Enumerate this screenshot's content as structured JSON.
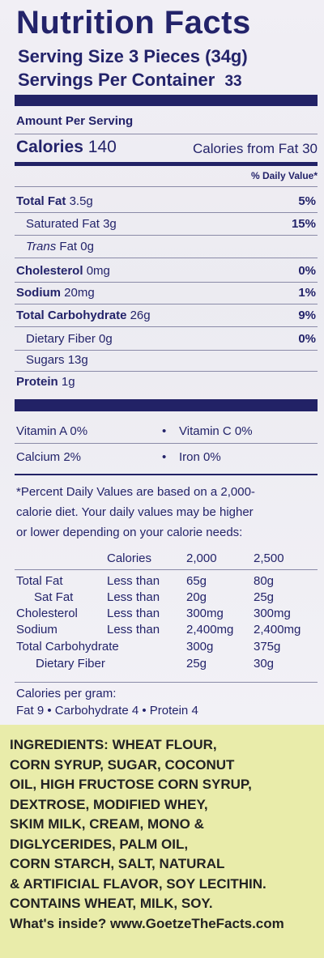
{
  "title": "Nutrition Facts",
  "serving_size": "Serving Size 3 Pieces (34g)",
  "servings_per_container_label": "Servings Per Container",
  "servings_per_container_value": "33",
  "amount_per_serving": "Amount Per Serving",
  "calories_label": "Calories",
  "calories_value": "140",
  "calories_from_fat": "Calories from Fat 30",
  "daily_value_header": "% Daily Value*",
  "nutrients": [
    {
      "name": "Total Fat",
      "amount": "3.5g",
      "dv": "5%"
    },
    {
      "name": "Saturated Fat",
      "amount": "3g",
      "dv": "15%"
    },
    {
      "name": "Trans",
      "amount": "Fat 0g",
      "dv": ""
    },
    {
      "name": "Cholesterol",
      "amount": "0mg",
      "dv": "0%"
    },
    {
      "name": "Sodium",
      "amount": "20mg",
      "dv": "1%"
    },
    {
      "name": "Total Carbohydrate",
      "amount": "26g",
      "dv": "9%"
    },
    {
      "name": "Dietary Fiber",
      "amount": "0g",
      "dv": "0%"
    },
    {
      "name": "Sugars",
      "amount": "13g",
      "dv": ""
    },
    {
      "name": "Protein",
      "amount": "1g",
      "dv": ""
    }
  ],
  "vitamins": {
    "vitamin_a": "Vitamin A  0%",
    "vitamin_c": "Vitamin C  0%",
    "calcium": "Calcium  2%",
    "iron": "Iron  0%",
    "bullet": "•"
  },
  "footnote": [
    "*Percent Daily Values are based on a 2,000-",
    "calorie diet. Your daily values may be higher",
    "or lower depending on your calorie needs:"
  ],
  "dv_table": {
    "header": [
      "Calories",
      "2,000",
      "2,500"
    ],
    "rows": [
      [
        "Total Fat",
        "Less than",
        "65g",
        "80g"
      ],
      [
        "Sat Fat",
        "Less than",
        "20g",
        "25g"
      ],
      [
        "Cholesterol",
        "Less than",
        "300mg",
        "300mg"
      ],
      [
        "Sodium",
        "Less than",
        "2,400mg",
        "2,400mg"
      ],
      [
        "Total Carbohydrate",
        "",
        "300g",
        "375g"
      ],
      [
        "Dietary Fiber",
        "",
        "25g",
        "30g"
      ]
    ]
  },
  "calories_per_gram_label": "Calories per gram:",
  "calories_per_gram": "Fat 9  •  Carbohydrate 4  •  Protein 4",
  "ingredients": {
    "label": "INGREDIENTS:",
    "lines": [
      "WHEAT FLOUR,",
      "CORN SYRUP, SUGAR, COCONUT",
      "OIL, HIGH FRUCTOSE CORN SYRUP,",
      "DEXTROSE, MODIFIED WHEY,",
      "SKIM MILK, CREAM, MONO &",
      "DIGLYCERIDES, PALM OIL,",
      "CORN STARCH, SALT, NATURAL",
      "& ARTIFICIAL FLAVOR, SOY LECITHIN."
    ],
    "contains": "CONTAINS WHEAT, MILK, SOY.",
    "whats_inside": "What's inside? www.GoetzeTheFacts.com"
  }
}
